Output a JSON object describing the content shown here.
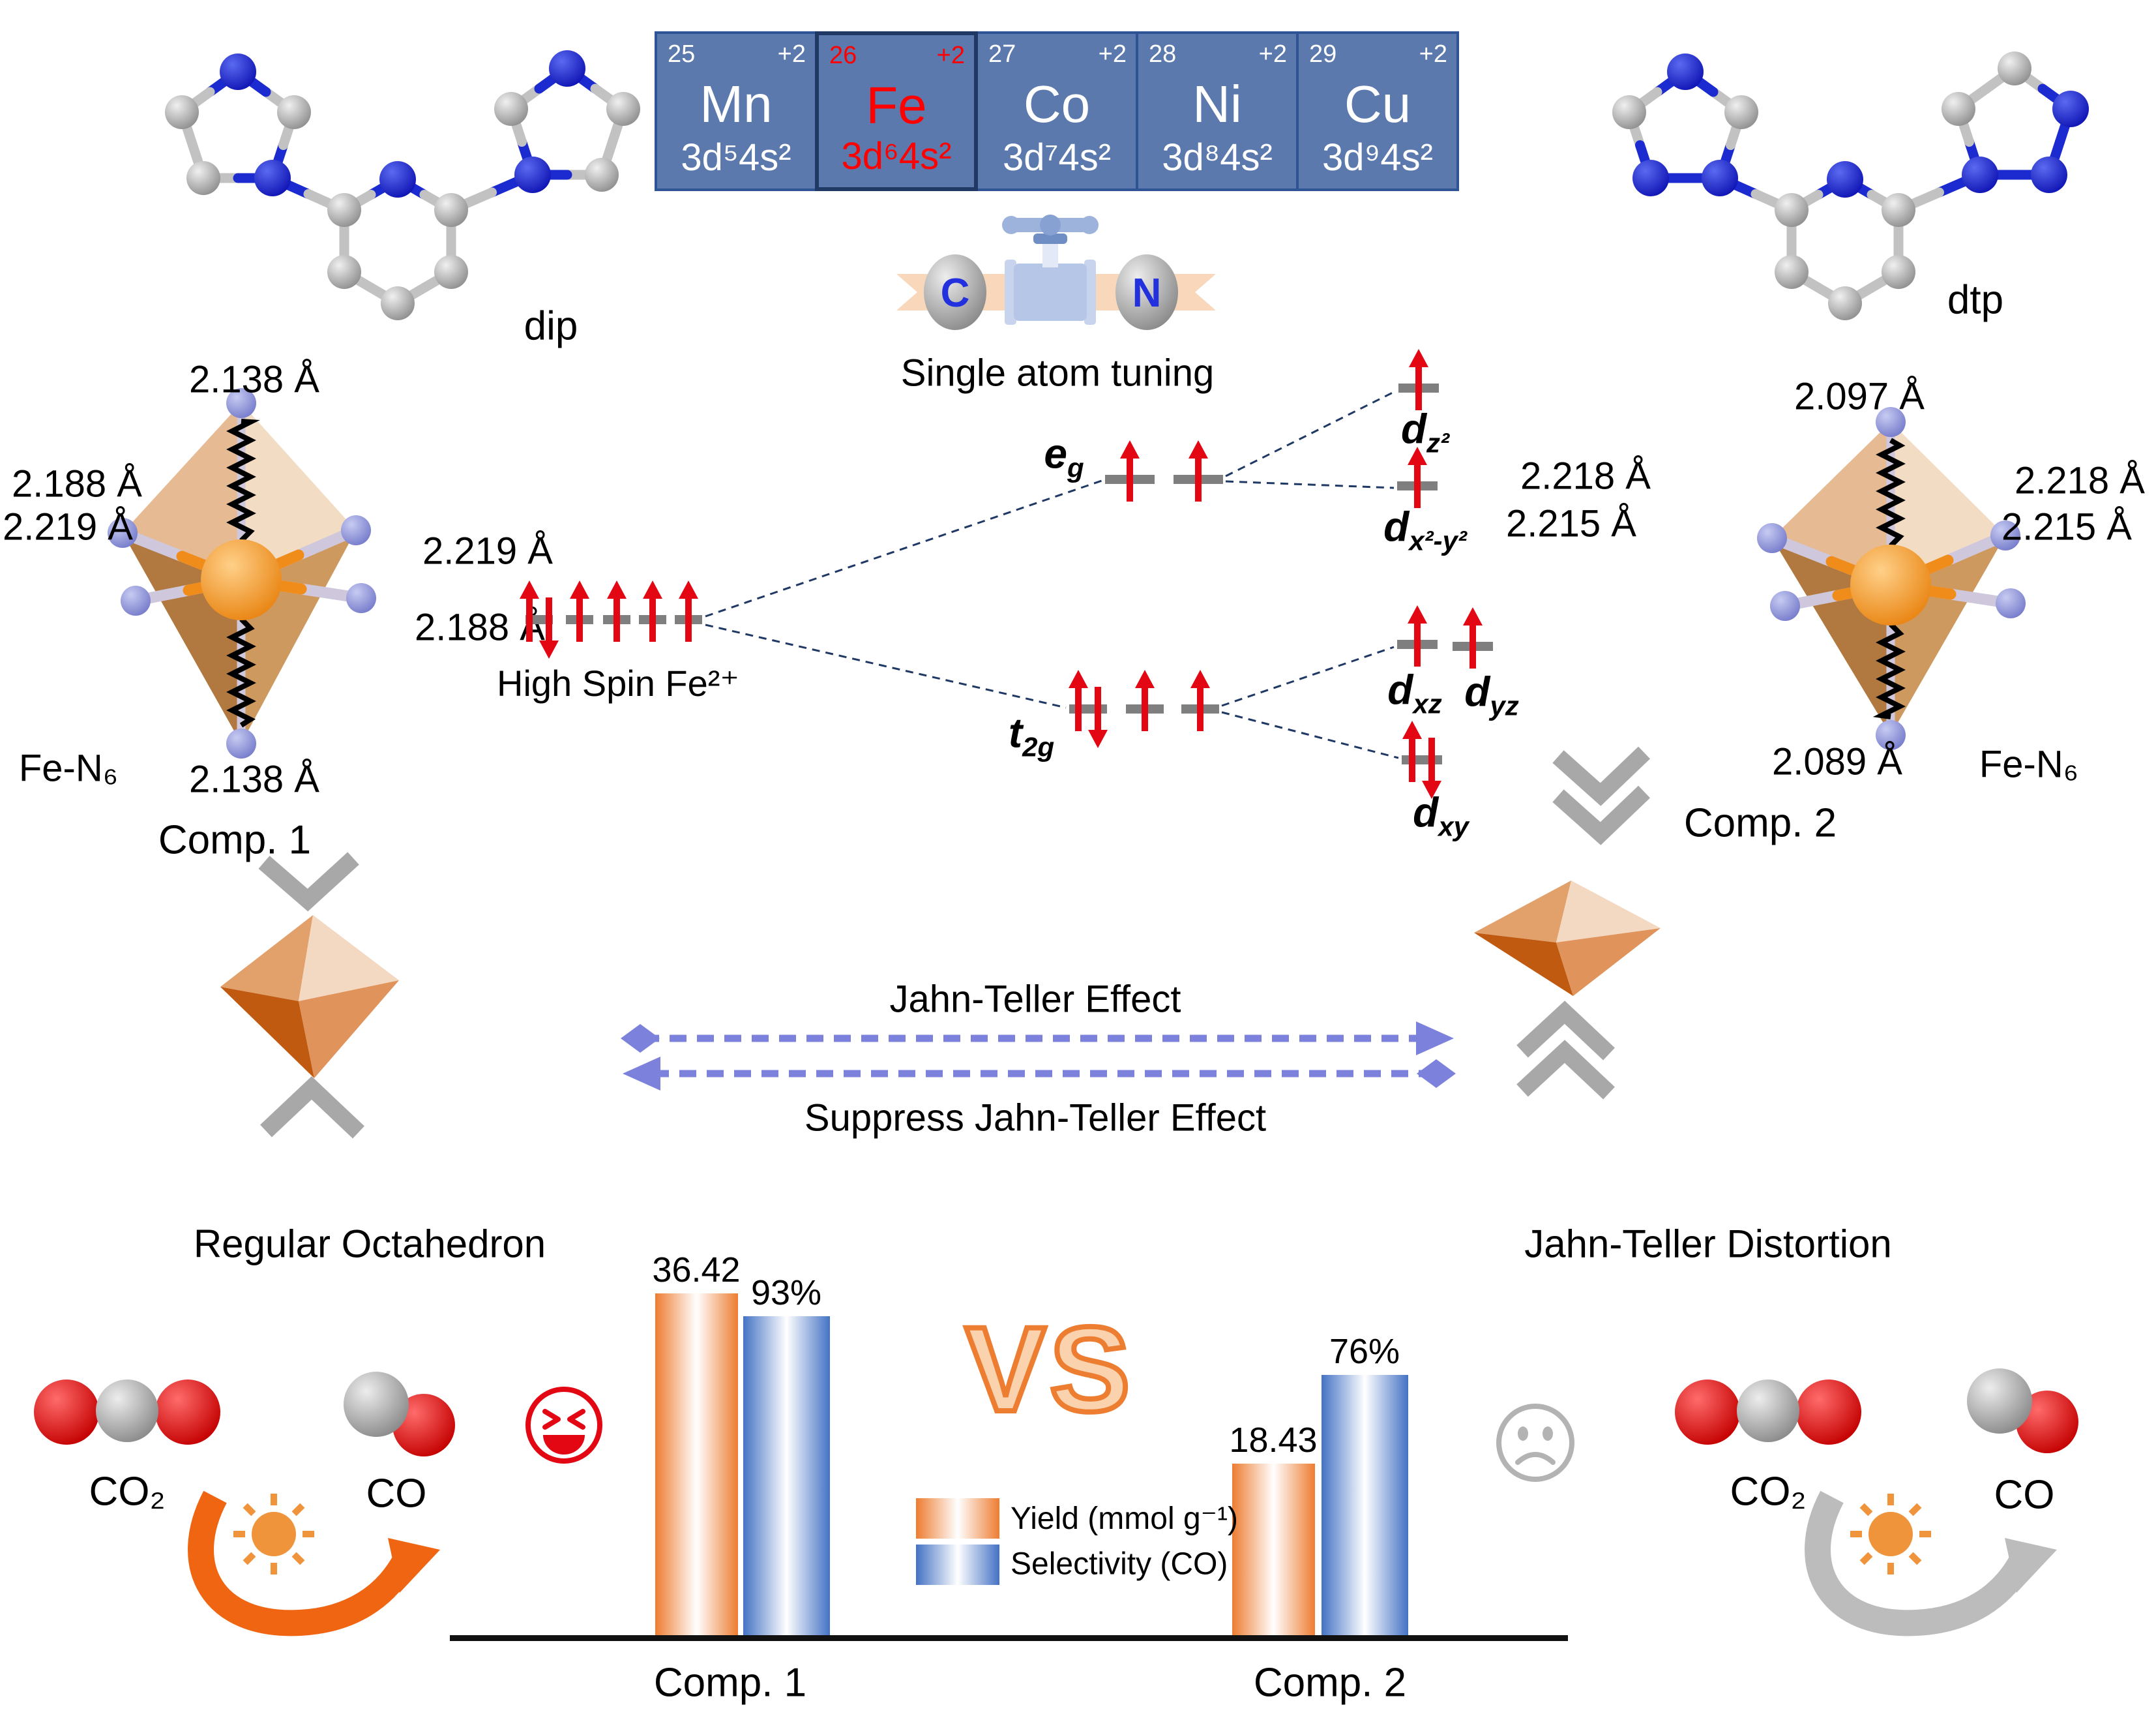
{
  "molecule_left": {
    "label": "dip"
  },
  "molecule_right": {
    "label": "dtp"
  },
  "periodic_table": {
    "elements": [
      {
        "number": "25",
        "charge": "+2",
        "symbol": "Mn",
        "config": "3d⁵4s²",
        "highlight": false
      },
      {
        "number": "26",
        "charge": "+2",
        "symbol": "Fe",
        "config": "3d⁶4s²",
        "highlight": true
      },
      {
        "number": "27",
        "charge": "+2",
        "symbol": "Co",
        "config": "3d⁷4s²",
        "highlight": false
      },
      {
        "number": "28",
        "charge": "+2",
        "symbol": "Ni",
        "config": "3d⁸4s²",
        "highlight": false
      },
      {
        "number": "29",
        "charge": "+2",
        "symbol": "Cu",
        "config": "3d⁹4s²",
        "highlight": false
      }
    ]
  },
  "valve": {
    "left_atom": "C",
    "right_atom": "N",
    "caption": "Single atom tuning"
  },
  "complex1": {
    "title": "Comp. 1",
    "formula": "Fe-N₆",
    "bond_top": "2.138 Å",
    "bond_left_upper": "2.188 Å",
    "bond_left_lower": "2.219 Å",
    "bond_right_upper": "2.219 Å",
    "bond_right_lower": "2.188 Å",
    "bond_bottom": "2.138 Å"
  },
  "complex2": {
    "title": "Comp. 2",
    "formula": "Fe-N₆",
    "bond_top": "2.097 Å",
    "bond_left_upper": "2.218 Å",
    "bond_left_lower": "2.215 Å",
    "bond_right_upper": "2.218 Å",
    "bond_right_lower": "2.215 Å",
    "bond_bottom": "2.089 Å"
  },
  "orbital_diagram": {
    "state_label": "High Spin Fe²⁺",
    "eg": {
      "base": "e",
      "sub": "g"
    },
    "t2g": {
      "base": "t",
      "sub": "2g"
    },
    "dz2": {
      "base": "d",
      "sub": "z²"
    },
    "dx2y2": {
      "base": "d",
      "sub": "x²-y²"
    },
    "dxz": {
      "base": "d",
      "sub": "xz"
    },
    "dyz": {
      "base": "d",
      "sub": "yz"
    },
    "dxy": {
      "base": "d",
      "sub": "xy"
    }
  },
  "jahn_teller": {
    "effect_label": "Jahn-Teller Effect",
    "suppress_label": "Suppress Jahn-Teller Effect",
    "regular_label": "Regular Octahedron",
    "distortion_label": "Jahn-Teller Distortion"
  },
  "vs_label": "VS",
  "reaction_left": {
    "reactant": "CO₂",
    "product": "CO"
  },
  "reaction_right": {
    "reactant": "CO₂",
    "product": "CO"
  },
  "chart_data": {
    "type": "bar",
    "categories": [
      "Comp. 1",
      "Comp. 2"
    ],
    "series": [
      {
        "name": "Yield (mmol g⁻¹)",
        "values": [
          36.42,
          18.43
        ],
        "color": "#ed7d31",
        "value_labels": [
          "36.42",
          "18.43"
        ]
      },
      {
        "name": "Selectivity (CO)",
        "values": [
          93,
          76
        ],
        "color": "#4472c4",
        "value_labels": [
          "93%",
          "76%"
        ],
        "unit": "%"
      }
    ],
    "legend_position": "center-between-groups",
    "grid": false,
    "baseline": true
  }
}
